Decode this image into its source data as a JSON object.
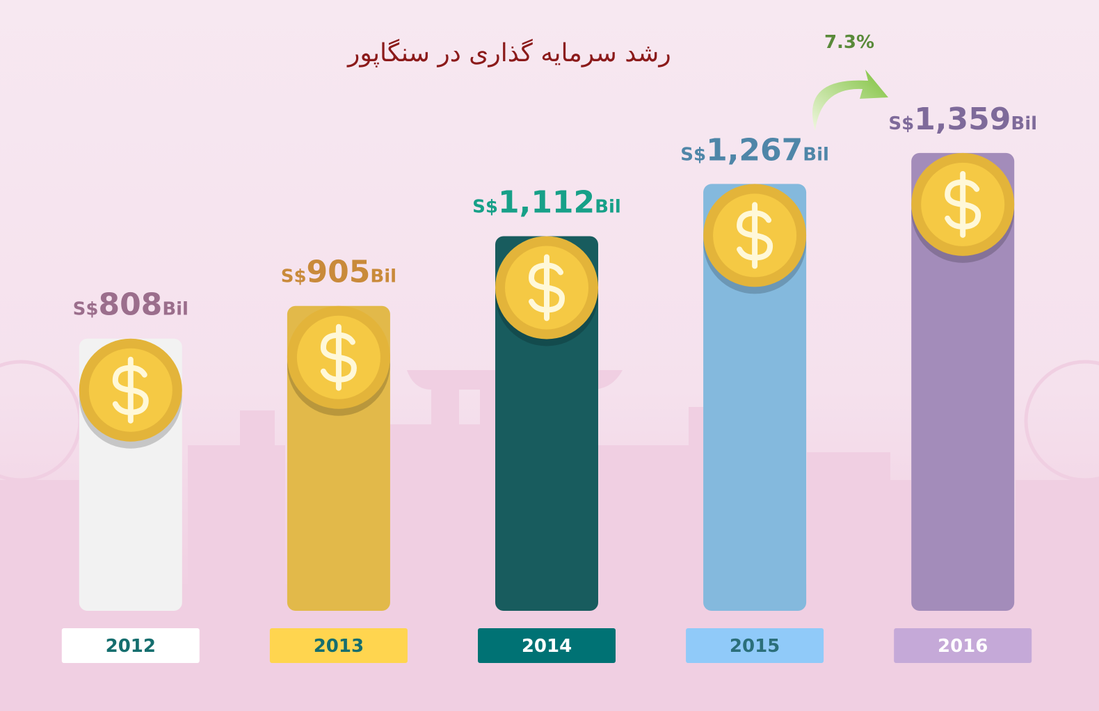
{
  "chart_data": {
    "type": "bar",
    "title": "رشد سرمایه گذاری در سنگاپور",
    "categories": [
      "2012",
      "2013",
      "2014",
      "2015",
      "2016"
    ],
    "values": [
      808,
      905,
      1112,
      1267,
      1359
    ],
    "value_labels": [
      "808",
      "905",
      "1,112",
      "1,267",
      "1,359"
    ],
    "value_prefix": "S$",
    "value_suffix": "Bil",
    "annotation": "7.3%",
    "ylim": [
      0,
      1400
    ],
    "colors": [
      "#f2f2f2",
      "#e2b94a",
      "#185c5e",
      "#84b9dd",
      "#a38cba"
    ],
    "label_colors": [
      "#9b6e8c",
      "#c98a3a",
      "#17a088",
      "#4f86a8",
      "#7e6a9a"
    ],
    "tag_colors": [
      "#ffffff",
      "#ffd54f",
      "#007274",
      "#90caf9",
      "#c5a9d8"
    ],
    "tag_text_colors": [
      "#156e6e",
      "#156e6e",
      "#ffffff",
      "#2b6f7a",
      "#ffffff"
    ]
  }
}
